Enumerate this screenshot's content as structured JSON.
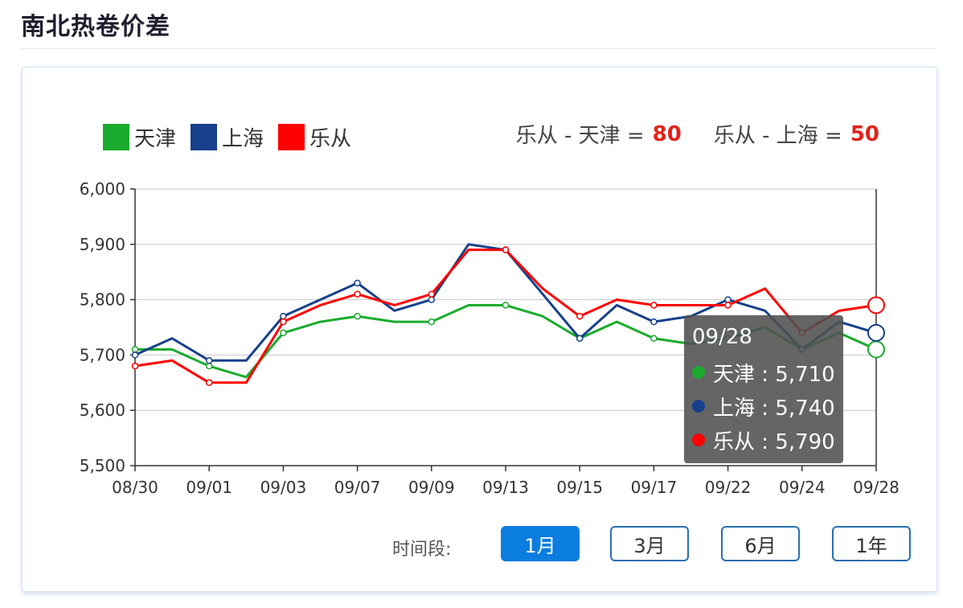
{
  "page": {
    "title": "南北热卷价差"
  },
  "legend": [
    {
      "name": "天津",
      "color": "#1aab2e"
    },
    {
      "name": "上海",
      "color": "#17408b"
    },
    {
      "name": "乐从",
      "color": "#ff0000"
    }
  ],
  "spreads": [
    {
      "label": "乐从 - 天津 =",
      "value": "80"
    },
    {
      "label": "乐从 - 上海 =",
      "value": "50"
    }
  ],
  "tooltip": {
    "title": "09/28",
    "rows": [
      {
        "text": "天津 : 5,710",
        "color": "#1aab2e"
      },
      {
        "text": "上海 : 5,740",
        "color": "#17408b"
      },
      {
        "text": "乐从 : 5,790",
        "color": "#ff0000"
      }
    ]
  },
  "range": {
    "label": "时间段:",
    "buttons": [
      {
        "label": "1月",
        "active": true
      },
      {
        "label": "3月",
        "active": false
      },
      {
        "label": "6月",
        "active": false
      },
      {
        "label": "1年",
        "active": false
      }
    ]
  },
  "chart_data": {
    "type": "line",
    "x": [
      "08/30",
      "08/31",
      "09/01",
      "09/02",
      "09/03",
      "09/06",
      "09/07",
      "09/08",
      "09/09",
      "09/10",
      "09/13",
      "09/14",
      "09/15",
      "09/16",
      "09/17",
      "09/18",
      "09/22",
      "09/23",
      "09/24",
      "09/27",
      "09/28"
    ],
    "x_tick_labels": [
      "08/30",
      "09/01",
      "09/03",
      "09/07",
      "09/09",
      "09/13",
      "09/15",
      "09/17",
      "09/22",
      "09/24",
      "09/28"
    ],
    "ylim": [
      5500,
      6000
    ],
    "y_ticks": [
      "5,500",
      "5,600",
      "5,700",
      "5,800",
      "5,900",
      "6,000"
    ],
    "grid": true,
    "legend_position": "top-left",
    "series": [
      {
        "name": "天津",
        "color": "#1aab2e",
        "values": [
          5710,
          5710,
          5680,
          5660,
          5740,
          5760,
          5770,
          5760,
          5760,
          5790,
          5790,
          5770,
          5730,
          5760,
          5730,
          5720,
          5730,
          5750,
          5710,
          5740,
          5710
        ]
      },
      {
        "name": "上海",
        "color": "#17408b",
        "values": [
          5700,
          5730,
          5690,
          5690,
          5770,
          5800,
          5830,
          5780,
          5800,
          5900,
          5890,
          5810,
          5730,
          5790,
          5760,
          5770,
          5800,
          5780,
          5710,
          5760,
          5740
        ]
      },
      {
        "name": "乐从",
        "color": "#ff0000",
        "values": [
          5680,
          5690,
          5650,
          5650,
          5760,
          5790,
          5810,
          5790,
          5810,
          5890,
          5890,
          5820,
          5770,
          5800,
          5790,
          5790,
          5790,
          5820,
          5740,
          5780,
          5790
        ]
      }
    ]
  }
}
